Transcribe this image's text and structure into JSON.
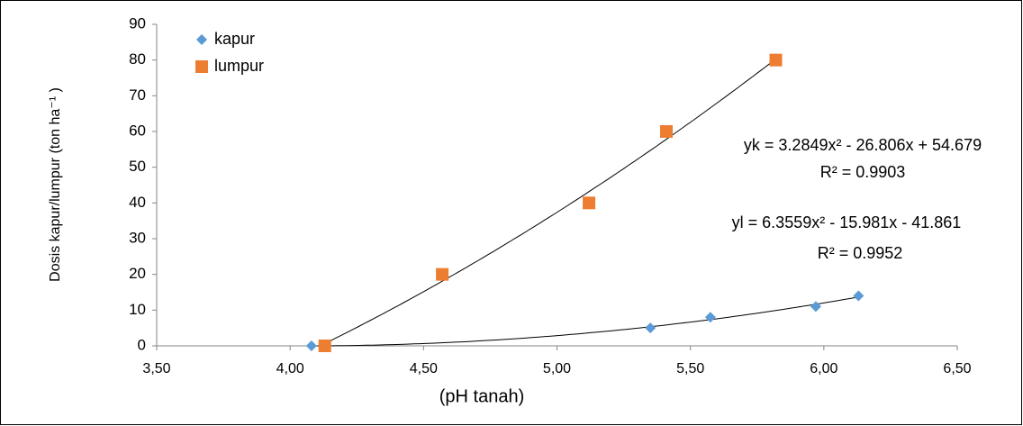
{
  "chart_data": {
    "type": "scatter",
    "x_label": "(pH tanah)",
    "y_label": "Dosis  kapur/lumpur (ton ha⁻¹ )",
    "series": [
      {
        "name": "kapur",
        "color": "#5b9bd5",
        "marker": "diamond",
        "x": [
          4.08,
          5.35,
          5.575,
          5.97,
          6.13
        ],
        "values": [
          0,
          5,
          8,
          11,
          14
        ]
      },
      {
        "name": "lumpur",
        "color": "#ed7d31",
        "marker": "square",
        "x": [
          4.13,
          4.57,
          5.12,
          5.41,
          5.82
        ],
        "values": [
          0,
          20,
          40,
          60,
          80
        ]
      }
    ],
    "trendline": "polynomial",
    "annotations": [
      "yk = 3.2849x² - 26.806x + 54.679",
      "R² = 0.9903",
      "yl = 6.3559x² - 15.981x - 41.861",
      "R² = 0.9952"
    ],
    "xlim": [
      3.5,
      6.5
    ],
    "xticks": [
      {
        "value": 3.5,
        "label": "3,50"
      },
      {
        "value": 4.0,
        "label": "4,00"
      },
      {
        "value": 4.5,
        "label": "4,50"
      },
      {
        "value": 5.0,
        "label": "5,00"
      },
      {
        "value": 5.5,
        "label": "5,50"
      },
      {
        "value": 6.0,
        "label": "6,00"
      },
      {
        "value": 6.5,
        "label": "6,50"
      }
    ],
    "ylim": [
      0,
      90
    ],
    "yticks": [
      0,
      10,
      20,
      30,
      40,
      50,
      60,
      70,
      80,
      90
    ],
    "grid": false,
    "legend": "upper-left"
  }
}
